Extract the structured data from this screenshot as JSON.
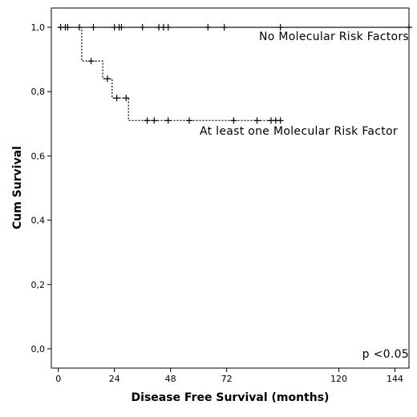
{
  "chart_data": {
    "type": "line",
    "chart_kind": "kaplan-meier",
    "xlabel": "Disease Free Survival (months)",
    "ylabel": "Cum Survival",
    "x_ticks": [
      0,
      24,
      48,
      72,
      120,
      144
    ],
    "x_tick_labels": [
      "0",
      "24",
      "48",
      "72",
      "120",
      "144"
    ],
    "y_ticks": [
      0.0,
      0.2,
      0.4,
      0.6,
      0.8,
      1.0
    ],
    "y_tick_labels": [
      "0,0",
      "0,2",
      "0,4",
      "0,6",
      "0,8",
      "1,0"
    ],
    "xlim": [
      -3,
      150
    ],
    "ylim": [
      -0.06,
      1.06
    ],
    "grid": false,
    "series": [
      {
        "name": "No Molecular Risk Factors",
        "line_style": "solid",
        "steps": [
          [
            0,
            1.0
          ],
          [
            150,
            1.0
          ]
        ],
        "censored": [
          [
            1,
            1.0
          ],
          [
            3,
            1.0
          ],
          [
            4,
            1.0
          ],
          [
            9,
            1.0
          ],
          [
            15,
            1.0
          ],
          [
            24,
            1.0
          ],
          [
            26,
            1.0
          ],
          [
            27,
            1.0
          ],
          [
            36,
            1.0
          ],
          [
            43,
            1.0
          ],
          [
            45,
            1.0
          ],
          [
            47,
            1.0
          ],
          [
            64,
            1.0
          ],
          [
            71,
            1.0
          ],
          [
            95,
            1.0
          ],
          [
            150,
            1.0
          ]
        ]
      },
      {
        "name": "At least one Molecular Risk Factor",
        "line_style": "dotted",
        "steps": [
          [
            0,
            1.0
          ],
          [
            10,
            1.0
          ],
          [
            10,
            0.895
          ],
          [
            19,
            0.895
          ],
          [
            19,
            0.84
          ],
          [
            23,
            0.84
          ],
          [
            23,
            0.78
          ],
          [
            30,
            0.78
          ],
          [
            30,
            0.71
          ],
          [
            95,
            0.71
          ]
        ],
        "censored": [
          [
            14,
            0.895
          ],
          [
            21,
            0.84
          ],
          [
            25,
            0.78
          ],
          [
            29,
            0.78
          ],
          [
            38,
            0.71
          ],
          [
            41,
            0.71
          ],
          [
            47,
            0.71
          ],
          [
            56,
            0.71
          ],
          [
            75,
            0.71
          ],
          [
            85,
            0.71
          ],
          [
            91,
            0.71
          ],
          [
            93,
            0.71
          ],
          [
            95,
            0.71
          ]
        ]
      }
    ],
    "annotations": {
      "series_1_label": "No Molecular Risk Factors",
      "series_2_label": "At least one Molecular Risk Factor",
      "p_value": "p <0.05"
    }
  }
}
